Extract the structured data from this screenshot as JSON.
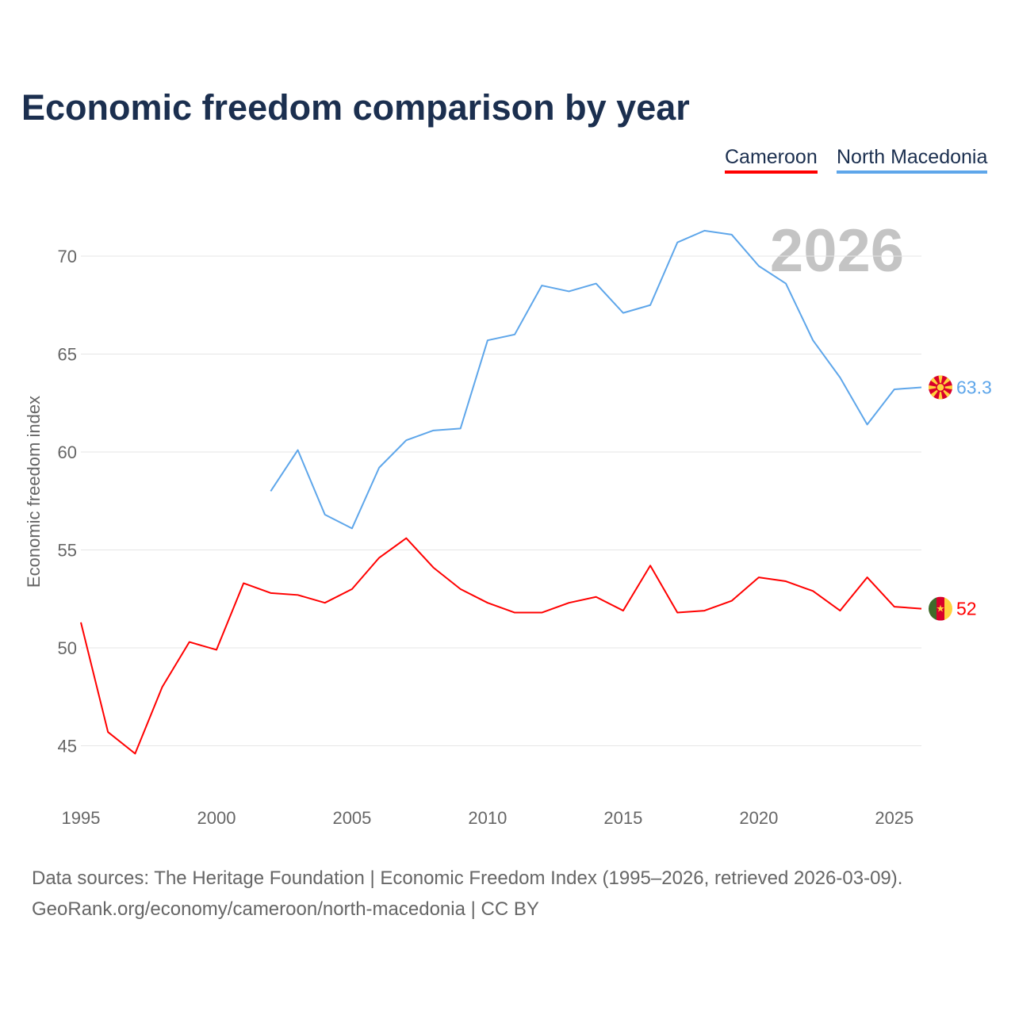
{
  "chart_data": {
    "type": "line",
    "title": "Economic freedom comparison by year",
    "xlabel": "",
    "ylabel": "Economic freedom index",
    "xlim": [
      1995,
      2026
    ],
    "ylim": [
      42.5,
      72.5
    ],
    "yticks": [
      45,
      50,
      55,
      60,
      65,
      70
    ],
    "xticks": [
      1995,
      2000,
      2005,
      2010,
      2015,
      2020,
      2025
    ],
    "grid": true,
    "legend_placement": "top-right",
    "watermark_year": "2026",
    "series": [
      {
        "name": "Cameroon",
        "color": "#ff0000",
        "end_label": "52",
        "flag": "cameroon-flag",
        "x": [
          1995,
          1996,
          1997,
          1998,
          1999,
          2000,
          2001,
          2002,
          2003,
          2004,
          2005,
          2006,
          2007,
          2008,
          2009,
          2010,
          2011,
          2012,
          2013,
          2014,
          2015,
          2016,
          2017,
          2018,
          2019,
          2020,
          2021,
          2022,
          2023,
          2024,
          2025,
          2026
        ],
        "values": [
          51.3,
          45.7,
          44.6,
          48.0,
          50.3,
          49.9,
          53.3,
          52.8,
          52.7,
          52.3,
          53.0,
          54.6,
          55.6,
          54.1,
          53.0,
          52.3,
          51.8,
          51.8,
          52.3,
          52.6,
          51.9,
          54.2,
          51.8,
          51.9,
          52.4,
          53.6,
          53.4,
          52.9,
          51.9,
          53.6,
          52.1,
          52.0
        ]
      },
      {
        "name": "North Macedonia",
        "color": "#5ea6ea",
        "end_label": "63.3",
        "flag": "north-macedonia-flag",
        "x": [
          2002,
          2003,
          2004,
          2005,
          2006,
          2007,
          2008,
          2009,
          2010,
          2011,
          2012,
          2013,
          2014,
          2015,
          2016,
          2017,
          2018,
          2019,
          2020,
          2021,
          2022,
          2023,
          2024,
          2025,
          2026
        ],
        "values": [
          58.0,
          60.1,
          56.8,
          56.1,
          59.2,
          60.6,
          61.1,
          61.2,
          65.7,
          66.0,
          68.5,
          68.2,
          68.6,
          67.1,
          67.5,
          70.7,
          71.3,
          71.1,
          69.5,
          68.6,
          65.7,
          63.8,
          61.4,
          63.2,
          63.3
        ]
      }
    ]
  },
  "source_line1": "Data sources: The Heritage Foundation | Economic Freedom Index (1995–2026, retrieved 2026-03-09).",
  "source_line2": "GeoRank.org/economy/cameroon/north-macedonia | CC BY"
}
